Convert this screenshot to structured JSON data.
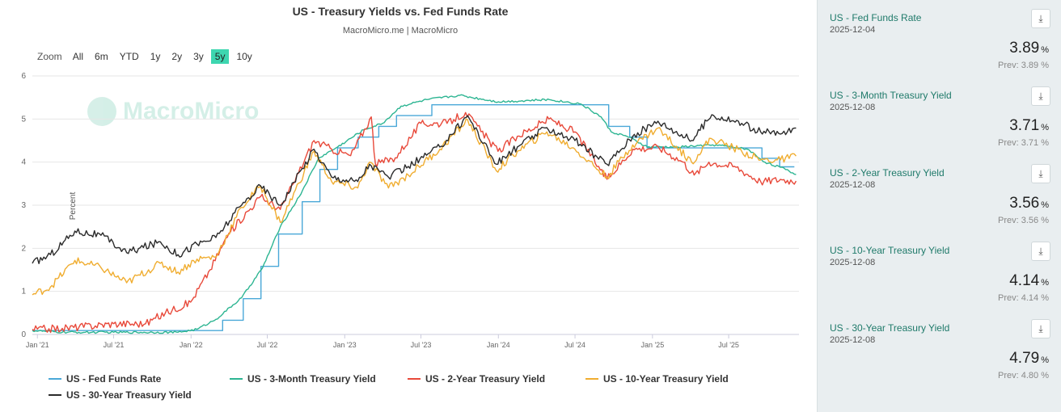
{
  "chart": {
    "title": "US - Treasury Yields vs. Fed Funds Rate",
    "subtitle": "MacroMicro.me | MacroMicro",
    "watermark": "MacroMicro",
    "zoom_label": "Zoom",
    "zoom_options": [
      "All",
      "6m",
      "YTD",
      "1y",
      "2y",
      "3y",
      "5y",
      "10y"
    ],
    "zoom_selected": "5y"
  },
  "colors": {
    "fed": "#4aa8d8",
    "m3": "#2db592",
    "y2": "#e8493a",
    "y10": "#f0ad30",
    "y30": "#2b2b2b",
    "zoom_active": "#3dd6b0",
    "panel_bg": "#e9eef0",
    "card_title": "#1f7a6a"
  },
  "chart_data": {
    "type": "line",
    "ylabel": "Percent",
    "ylim": [
      0,
      6
    ],
    "yticks": [
      "0",
      "1",
      "2",
      "3",
      "4",
      "5",
      "6"
    ],
    "xlim": [
      "2020-12-20",
      "2025-12-15"
    ],
    "xticks": [
      {
        "date": "2021-01-01",
        "label": "Jan '21"
      },
      {
        "date": "2021-07-01",
        "label": "Jul '21"
      },
      {
        "date": "2022-01-01",
        "label": "Jan '22"
      },
      {
        "date": "2022-07-01",
        "label": "Jul '22"
      },
      {
        "date": "2023-01-01",
        "label": "Jan '23"
      },
      {
        "date": "2023-07-01",
        "label": "Jul '23"
      },
      {
        "date": "2024-01-01",
        "label": "Jan '24"
      },
      {
        "date": "2024-07-01",
        "label": "Jul '24"
      },
      {
        "date": "2025-01-01",
        "label": "Jan '25"
      },
      {
        "date": "2025-07-01",
        "label": "Jul '25"
      }
    ],
    "grid": true,
    "legend_position": "bottom",
    "series": [
      {
        "name": "US - Fed Funds Rate",
        "color": "#4aa8d8",
        "step": true,
        "points": [
          [
            "2020-12-20",
            0.09
          ],
          [
            "2022-03-17",
            0.33
          ],
          [
            "2022-05-05",
            0.83
          ],
          [
            "2022-06-16",
            1.58
          ],
          [
            "2022-07-28",
            2.33
          ],
          [
            "2022-09-22",
            3.08
          ],
          [
            "2022-11-03",
            3.83
          ],
          [
            "2022-12-15",
            4.33
          ],
          [
            "2023-02-02",
            4.58
          ],
          [
            "2023-03-23",
            4.83
          ],
          [
            "2023-05-04",
            5.08
          ],
          [
            "2023-07-27",
            5.33
          ],
          [
            "2024-09-19",
            4.83
          ],
          [
            "2024-11-08",
            4.58
          ],
          [
            "2024-12-19",
            4.33
          ],
          [
            "2025-09-18",
            4.09
          ],
          [
            "2025-10-30",
            3.89
          ],
          [
            "2025-12-04",
            3.89
          ]
        ]
      },
      {
        "name": "US - 3-Month Treasury Yield",
        "color": "#2db592",
        "points": [
          [
            "2020-12-20",
            0.09
          ],
          [
            "2021-03-01",
            0.05
          ],
          [
            "2021-07-01",
            0.05
          ],
          [
            "2021-12-01",
            0.05
          ],
          [
            "2022-01-15",
            0.12
          ],
          [
            "2022-03-01",
            0.35
          ],
          [
            "2022-05-01",
            0.85
          ],
          [
            "2022-06-20",
            1.55
          ],
          [
            "2022-08-01",
            2.5
          ],
          [
            "2022-09-15",
            3.2
          ],
          [
            "2022-11-01",
            4.1
          ],
          [
            "2022-12-15",
            4.35
          ],
          [
            "2023-02-15",
            4.75
          ],
          [
            "2023-04-01",
            4.9
          ],
          [
            "2023-05-15",
            5.3
          ],
          [
            "2023-07-15",
            5.45
          ],
          [
            "2023-10-01",
            5.55
          ],
          [
            "2024-01-01",
            5.4
          ],
          [
            "2024-05-01",
            5.45
          ],
          [
            "2024-07-15",
            5.35
          ],
          [
            "2024-09-01",
            5.05
          ],
          [
            "2024-09-25",
            4.7
          ],
          [
            "2024-11-01",
            4.6
          ],
          [
            "2024-12-20",
            4.35
          ],
          [
            "2025-03-01",
            4.35
          ],
          [
            "2025-06-01",
            4.4
          ],
          [
            "2025-08-15",
            4.3
          ],
          [
            "2025-09-25",
            4.0
          ],
          [
            "2025-11-01",
            3.88
          ],
          [
            "2025-12-08",
            3.71
          ]
        ]
      },
      {
        "name": "US - 2-Year Treasury Yield",
        "color": "#e8493a",
        "points": [
          [
            "2020-12-20",
            0.12
          ],
          [
            "2021-03-01",
            0.14
          ],
          [
            "2021-07-01",
            0.25
          ],
          [
            "2021-09-15",
            0.25
          ],
          [
            "2021-11-01",
            0.5
          ],
          [
            "2021-12-31",
            0.75
          ],
          [
            "2022-02-15",
            1.5
          ],
          [
            "2022-04-01",
            2.35
          ],
          [
            "2022-06-15",
            3.2
          ],
          [
            "2022-08-01",
            2.9
          ],
          [
            "2022-09-01",
            3.5
          ],
          [
            "2022-10-20",
            4.5
          ],
          [
            "2022-12-01",
            4.3
          ],
          [
            "2023-01-15",
            4.15
          ],
          [
            "2023-03-05",
            5.05
          ],
          [
            "2023-03-15",
            3.95
          ],
          [
            "2023-05-01",
            4.1
          ],
          [
            "2023-07-01",
            4.9
          ],
          [
            "2023-09-01",
            4.9
          ],
          [
            "2023-10-15",
            5.15
          ],
          [
            "2023-12-31",
            4.25
          ],
          [
            "2024-02-15",
            4.6
          ],
          [
            "2024-04-30",
            5.0
          ],
          [
            "2024-07-01",
            4.7
          ],
          [
            "2024-09-15",
            3.6
          ],
          [
            "2024-11-15",
            4.3
          ],
          [
            "2025-01-15",
            4.35
          ],
          [
            "2025-03-15",
            4.0
          ],
          [
            "2025-04-10",
            3.7
          ],
          [
            "2025-05-15",
            4.0
          ],
          [
            "2025-07-15",
            3.9
          ],
          [
            "2025-09-15",
            3.55
          ],
          [
            "2025-11-01",
            3.6
          ],
          [
            "2025-12-08",
            3.56
          ]
        ]
      },
      {
        "name": "US - 10-Year Treasury Yield",
        "color": "#f0ad30",
        "points": [
          [
            "2020-12-20",
            0.92
          ],
          [
            "2021-02-01",
            1.1
          ],
          [
            "2021-03-31",
            1.72
          ],
          [
            "2021-06-01",
            1.55
          ],
          [
            "2021-08-01",
            1.2
          ],
          [
            "2021-10-20",
            1.65
          ],
          [
            "2021-12-01",
            1.45
          ],
          [
            "2022-01-15",
            1.75
          ],
          [
            "2022-03-01",
            1.8
          ],
          [
            "2022-05-01",
            2.95
          ],
          [
            "2022-06-15",
            3.45
          ],
          [
            "2022-08-01",
            2.6
          ],
          [
            "2022-10-20",
            4.25
          ],
          [
            "2022-12-01",
            3.55
          ],
          [
            "2023-02-01",
            3.4
          ],
          [
            "2023-03-01",
            4.0
          ],
          [
            "2023-04-15",
            3.4
          ],
          [
            "2023-06-01",
            3.7
          ],
          [
            "2023-08-15",
            4.3
          ],
          [
            "2023-10-20",
            4.98
          ],
          [
            "2023-12-27",
            3.8
          ],
          [
            "2024-02-15",
            4.25
          ],
          [
            "2024-04-25",
            4.7
          ],
          [
            "2024-07-01",
            4.3
          ],
          [
            "2024-09-15",
            3.65
          ],
          [
            "2024-11-15",
            4.4
          ],
          [
            "2025-01-14",
            4.79
          ],
          [
            "2025-04-04",
            4.0
          ],
          [
            "2025-05-20",
            4.55
          ],
          [
            "2025-08-01",
            4.25
          ],
          [
            "2025-09-15",
            4.05
          ],
          [
            "2025-11-01",
            4.05
          ],
          [
            "2025-12-08",
            4.14
          ]
        ]
      },
      {
        "name": "US - 30-Year Treasury Yield",
        "color": "#2b2b2b",
        "points": [
          [
            "2020-12-20",
            1.65
          ],
          [
            "2021-02-01",
            1.85
          ],
          [
            "2021-03-31",
            2.4
          ],
          [
            "2021-06-01",
            2.3
          ],
          [
            "2021-08-01",
            1.9
          ],
          [
            "2021-10-20",
            2.15
          ],
          [
            "2021-12-01",
            1.85
          ],
          [
            "2022-01-15",
            2.1
          ],
          [
            "2022-03-01",
            2.25
          ],
          [
            "2022-05-01",
            3.0
          ],
          [
            "2022-06-15",
            3.45
          ],
          [
            "2022-08-01",
            3.0
          ],
          [
            "2022-10-20",
            4.3
          ],
          [
            "2022-12-01",
            3.65
          ],
          [
            "2023-02-01",
            3.55
          ],
          [
            "2023-03-01",
            3.95
          ],
          [
            "2023-04-15",
            3.65
          ],
          [
            "2023-06-01",
            3.9
          ],
          [
            "2023-08-15",
            4.35
          ],
          [
            "2023-10-20",
            5.08
          ],
          [
            "2023-12-27",
            3.95
          ],
          [
            "2024-02-15",
            4.35
          ],
          [
            "2024-04-25",
            4.8
          ],
          [
            "2024-07-01",
            4.5
          ],
          [
            "2024-09-15",
            3.95
          ],
          [
            "2024-11-15",
            4.6
          ],
          [
            "2025-01-14",
            4.95
          ],
          [
            "2025-04-04",
            4.5
          ],
          [
            "2025-05-22",
            5.1
          ],
          [
            "2025-08-01",
            4.9
          ],
          [
            "2025-09-15",
            4.7
          ],
          [
            "2025-11-01",
            4.65
          ],
          [
            "2025-12-08",
            4.79
          ]
        ]
      }
    ]
  },
  "legend": [
    {
      "label": "US - Fed Funds Rate",
      "color": "#4aa8d8"
    },
    {
      "label": "US - 3-Month Treasury Yield",
      "color": "#2db592"
    },
    {
      "label": "US - 2-Year Treasury Yield",
      "color": "#e8493a"
    },
    {
      "label": "US - 10-Year Treasury Yield",
      "color": "#f0ad30"
    },
    {
      "label": "US - 30-Year Treasury Yield",
      "color": "#2b2b2b"
    }
  ],
  "panel": {
    "download_icon": "download-icon",
    "cards": [
      {
        "name": "US - Fed Funds Rate",
        "date": "2025-12-04",
        "value": "3.89",
        "unit": "%",
        "prev": "Prev: 3.89 %"
      },
      {
        "name": "US - 3-Month Treasury Yield",
        "date": "2025-12-08",
        "value": "3.71",
        "unit": "%",
        "prev": "Prev: 3.71 %"
      },
      {
        "name": "US - 2-Year Treasury Yield",
        "date": "2025-12-08",
        "value": "3.56",
        "unit": "%",
        "prev": "Prev: 3.56 %"
      },
      {
        "name": "US - 10-Year Treasury Yield",
        "date": "2025-12-08",
        "value": "4.14",
        "unit": "%",
        "prev": "Prev: 4.14 %"
      },
      {
        "name": "US - 30-Year Treasury Yield",
        "date": "2025-12-08",
        "value": "4.79",
        "unit": "%",
        "prev": "Prev: 4.80 %"
      }
    ]
  }
}
